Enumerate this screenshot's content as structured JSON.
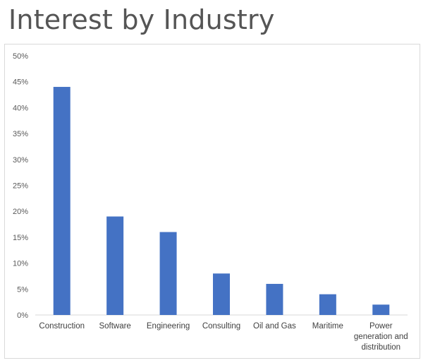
{
  "chart_data": {
    "type": "bar",
    "title": "Interest by Industry",
    "categories": [
      "Construction",
      "Software",
      "Engineering",
      "Consulting",
      "Oil and Gas",
      "Maritime",
      "Power generation and distribution"
    ],
    "category_lines": [
      [
        "Construction"
      ],
      [
        "Software"
      ],
      [
        "Engineering"
      ],
      [
        "Consulting"
      ],
      [
        "Oil and Gas"
      ],
      [
        "Maritime"
      ],
      [
        "Power",
        "generation and",
        "distribution"
      ]
    ],
    "values": [
      44,
      19,
      16,
      8,
      6,
      4,
      2
    ],
    "ylim": [
      0,
      50
    ],
    "yticks": [
      0,
      5,
      10,
      15,
      20,
      25,
      30,
      35,
      40,
      45,
      50
    ],
    "ytick_labels": [
      "0%",
      "5%",
      "10%",
      "15%",
      "20%",
      "25%",
      "30%",
      "35%",
      "40%",
      "45%",
      "50%"
    ],
    "grid": false,
    "legend": "none",
    "bar_color": "#4472C4",
    "xlabel": "",
    "ylabel": ""
  }
}
